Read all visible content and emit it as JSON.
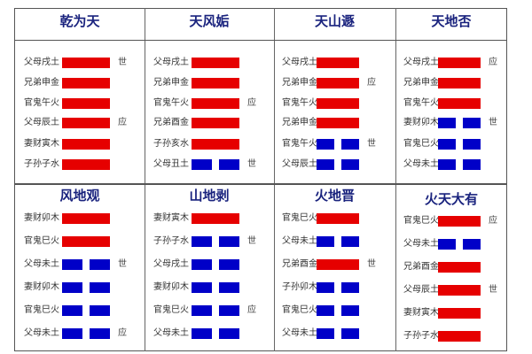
{
  "colors": {
    "yang": "#e60000",
    "yin": "#0000c8",
    "title": "#1a237e"
  },
  "hexagrams": [
    {
      "name": "乾为天",
      "lines": [
        {
          "label": "父母戌土",
          "type": "yang",
          "marker": "世"
        },
        {
          "label": "兄弟申金",
          "type": "yang",
          "marker": ""
        },
        {
          "label": "官鬼午火",
          "type": "yang",
          "marker": ""
        },
        {
          "label": "父母辰土",
          "type": "yang",
          "marker": "应"
        },
        {
          "label": "妻财寅木",
          "type": "yang",
          "marker": ""
        },
        {
          "label": "子孙子水",
          "type": "yang",
          "marker": ""
        }
      ]
    },
    {
      "name": "天风姤",
      "lines": [
        {
          "label": "父母戌土",
          "type": "yang",
          "marker": ""
        },
        {
          "label": "兄弟申金",
          "type": "yang",
          "marker": ""
        },
        {
          "label": "官鬼午火",
          "type": "yang",
          "marker": "应"
        },
        {
          "label": "兄弟酉金",
          "type": "yang",
          "marker": ""
        },
        {
          "label": "子孙亥水",
          "type": "yang",
          "marker": ""
        },
        {
          "label": "父母丑土",
          "type": "yin",
          "marker": "世"
        }
      ]
    },
    {
      "name": "天山遯",
      "lines": [
        {
          "label": "父母戌土",
          "type": "yang",
          "marker": ""
        },
        {
          "label": "兄弟申金",
          "type": "yang",
          "marker": "应"
        },
        {
          "label": "官鬼午火",
          "type": "yang",
          "marker": ""
        },
        {
          "label": "兄弟申金",
          "type": "yang",
          "marker": ""
        },
        {
          "label": "官鬼午火",
          "type": "yin",
          "marker": "世"
        },
        {
          "label": "父母辰土",
          "type": "yin",
          "marker": ""
        }
      ]
    },
    {
      "name": "天地否",
      "lines": [
        {
          "label": "父母戌土",
          "type": "yang",
          "marker": "应"
        },
        {
          "label": "兄弟申金",
          "type": "yang",
          "marker": ""
        },
        {
          "label": "官鬼午火",
          "type": "yang",
          "marker": ""
        },
        {
          "label": "妻财卯木",
          "type": "yin",
          "marker": "世"
        },
        {
          "label": "官鬼巳火",
          "type": "yin",
          "marker": ""
        },
        {
          "label": "父母未土",
          "type": "yin",
          "marker": ""
        }
      ]
    },
    {
      "name": "风地观",
      "lines": [
        {
          "label": "妻财卯木",
          "type": "yang",
          "marker": ""
        },
        {
          "label": "官鬼巳火",
          "type": "yang",
          "marker": ""
        },
        {
          "label": "父母未土",
          "type": "yin",
          "marker": "世"
        },
        {
          "label": "妻财卯木",
          "type": "yin",
          "marker": ""
        },
        {
          "label": "官鬼巳火",
          "type": "yin",
          "marker": ""
        },
        {
          "label": "父母未土",
          "type": "yin",
          "marker": "应"
        }
      ]
    },
    {
      "name": "山地剥",
      "lines": [
        {
          "label": "妻财寅木",
          "type": "yang",
          "marker": ""
        },
        {
          "label": "子孙子水",
          "type": "yin",
          "marker": "世"
        },
        {
          "label": "父母戌土",
          "type": "yin",
          "marker": ""
        },
        {
          "label": "妻财卯木",
          "type": "yin",
          "marker": ""
        },
        {
          "label": "官鬼巳火",
          "type": "yin",
          "marker": "应"
        },
        {
          "label": "父母未土",
          "type": "yin",
          "marker": ""
        }
      ]
    },
    {
      "name": "火地晋",
      "lines": [
        {
          "label": "官鬼巳火",
          "type": "yang",
          "marker": ""
        },
        {
          "label": "父母未土",
          "type": "yin",
          "marker": ""
        },
        {
          "label": "兄弟酉金",
          "type": "yang",
          "marker": "世"
        },
        {
          "label": "子孙卯木",
          "type": "yin",
          "marker": ""
        },
        {
          "label": "官鬼巳火",
          "type": "yin",
          "marker": ""
        },
        {
          "label": "父母未土",
          "type": "yin",
          "marker": ""
        }
      ]
    },
    {
      "name": "火天大有",
      "lines": [
        {
          "label": "官鬼巳火",
          "type": "yang",
          "marker": "应"
        },
        {
          "label": "父母未土",
          "type": "yin",
          "marker": ""
        },
        {
          "label": "兄弟酉金",
          "type": "yang",
          "marker": ""
        },
        {
          "label": "父母辰土",
          "type": "yang",
          "marker": "世"
        },
        {
          "label": "妻财寅木",
          "type": "yang",
          "marker": ""
        },
        {
          "label": "子孙子水",
          "type": "yang",
          "marker": ""
        }
      ]
    }
  ]
}
